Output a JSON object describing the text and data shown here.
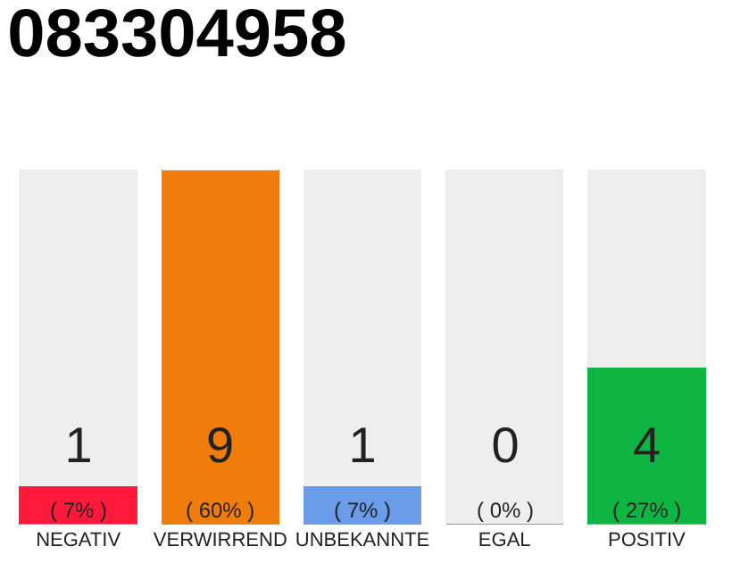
{
  "chart_data": {
    "type": "bar",
    "title": "083304958",
    "stacked": true,
    "categories": [
      "NEGATIV",
      "VERWIRREND",
      "UNBEKANNTE",
      "EGAL",
      "POSITIV"
    ],
    "series": [
      {
        "colors": [
          "#ff1a3c",
          "#f07d0b",
          "#6b9ce8",
          "#aaaaaa",
          "#0fb543"
        ],
        "values": [
          1,
          9,
          1,
          0,
          4
        ],
        "value_labels": [
          "1\n( 7% )",
          "9\n( 60% )",
          "1\n( 7% )",
          "0\n( 0% )",
          "4\n( 27% )"
        ]
      },
      {
        "color": "#eeeeee",
        "values": [
          8,
          0,
          8,
          9,
          5
        ]
      }
    ],
    "ylim": [
      0,
      9
    ],
    "grid": false
  }
}
